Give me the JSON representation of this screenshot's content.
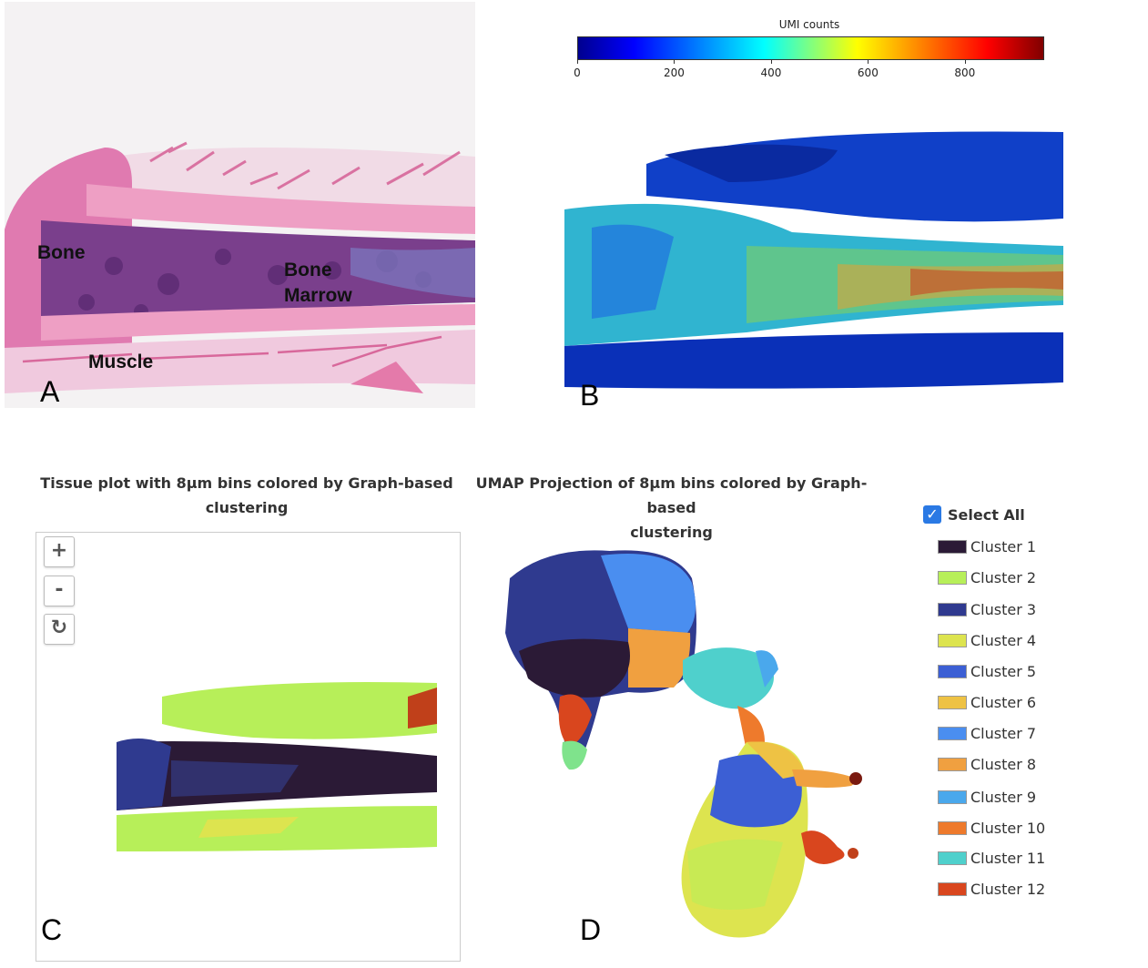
{
  "panel_a": {
    "labels": {
      "bone": "Bone",
      "bone_marrow_line1": "Bone",
      "bone_marrow_line2": "Marrow",
      "muscle": "Muscle"
    },
    "letter": "A"
  },
  "panel_b": {
    "colorbar_title": "UMI counts",
    "colorbar_ticks": [
      "0",
      "200",
      "400",
      "600",
      "800"
    ],
    "letter": "B"
  },
  "panel_c": {
    "title_line1": "Tissue plot with 8µm bins colored by Graph-based",
    "title_line2": "clustering",
    "zoom_in": "+",
    "zoom_out": "-",
    "reset": "↻",
    "letter": "C"
  },
  "panel_d": {
    "title_line1": "UMAP Projection of 8µm bins colored by Graph-based",
    "title_line2": "clustering",
    "letter": "D"
  },
  "legend": {
    "select_all": "Select All",
    "check": "✓",
    "clusters": [
      {
        "label": "Cluster 1",
        "color": "#2b1a36"
      },
      {
        "label": "Cluster 2",
        "color": "#b7ef59"
      },
      {
        "label": "Cluster 3",
        "color": "#2f3a8f"
      },
      {
        "label": "Cluster 4",
        "color": "#dde44f"
      },
      {
        "label": "Cluster 5",
        "color": "#3c5fd4"
      },
      {
        "label": "Cluster 6",
        "color": "#eec244"
      },
      {
        "label": "Cluster 7",
        "color": "#4a8ef0"
      },
      {
        "label": "Cluster 8",
        "color": "#f0a040"
      },
      {
        "label": "Cluster 9",
        "color": "#4aa8ec"
      },
      {
        "label": "Cluster 10",
        "color": "#ee7a2c"
      },
      {
        "label": "Cluster 11",
        "color": "#4fd0cc"
      },
      {
        "label": "Cluster 12",
        "color": "#d9461e"
      }
    ]
  }
}
